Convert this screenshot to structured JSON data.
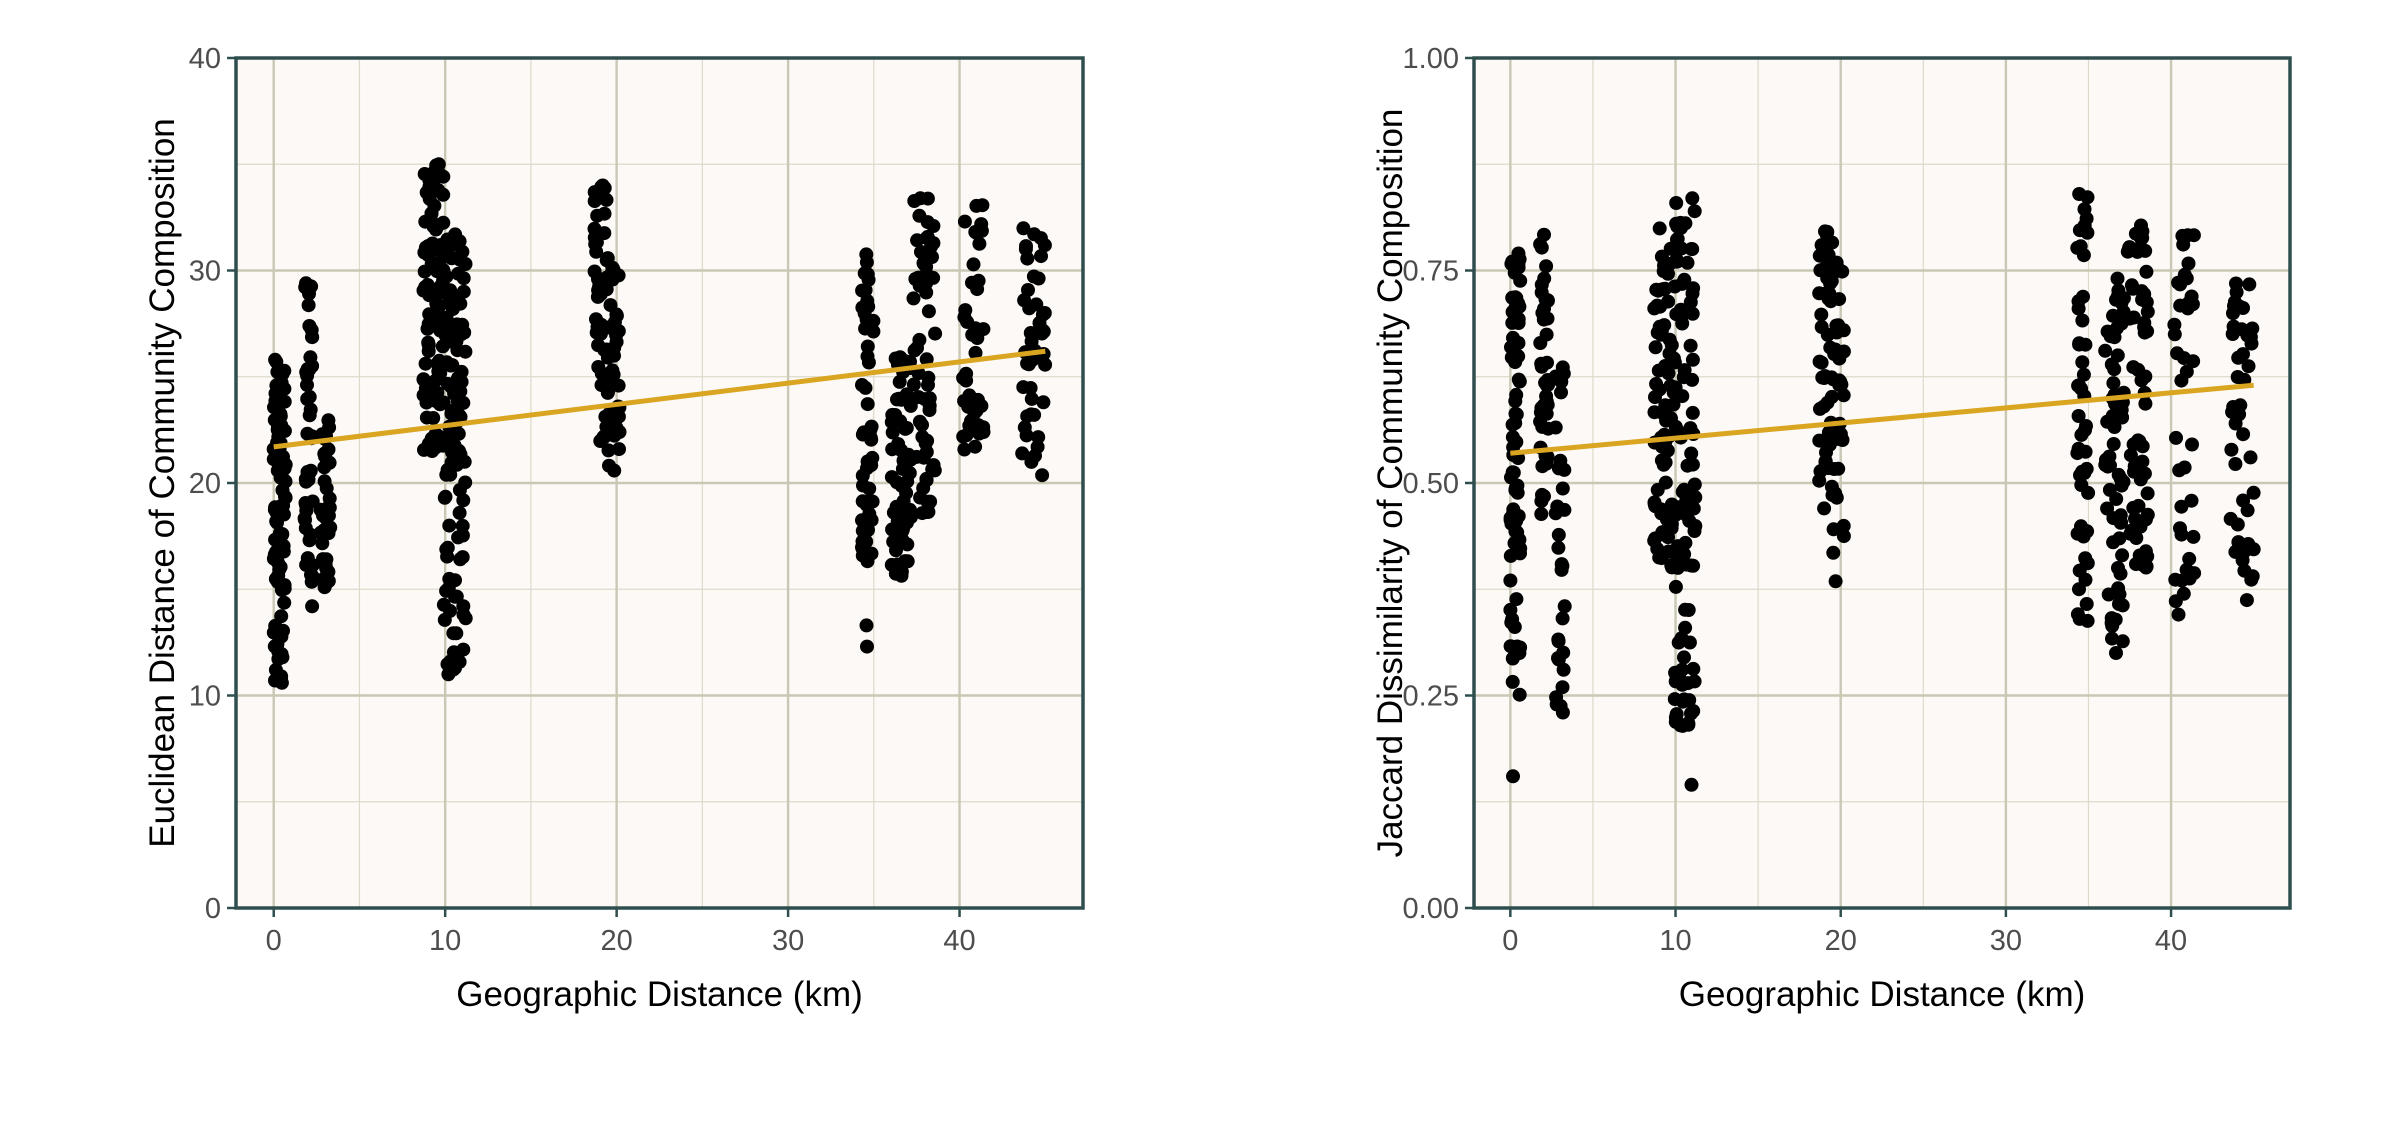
{
  "chart_data": [
    {
      "type": "scatter",
      "xlabel": "Geographic Distance (km)",
      "ylabel": "Euclidean Distance of Community Composition",
      "xlim": [
        -2.2,
        47.2
      ],
      "ylim": [
        0,
        40
      ],
      "x_ticks": [
        0,
        10,
        20,
        30,
        40
      ],
      "x_tick_labels": [
        "0",
        "10",
        "20",
        "30",
        "40"
      ],
      "y_ticks": [
        0,
        10,
        20,
        30,
        40
      ],
      "y_tick_labels": [
        "0",
        "10",
        "20",
        "30",
        "40"
      ],
      "grid": true,
      "point_color": "#000000",
      "trend_color": "#daa520",
      "trend_line": {
        "x": [
          0,
          45
        ],
        "y": [
          21.7,
          26.2
        ]
      },
      "clusters": [
        {
          "x": [
            0.0,
            0.7
          ],
          "y_range": [
            10.6,
            25.8
          ],
          "n": 90,
          "extra_y": [
            10.6,
            11.8,
            25.8
          ]
        },
        {
          "x": [
            1.8,
            2.3
          ],
          "y_range": [
            14.2,
            29.4
          ],
          "n": 45,
          "extra_y": [
            29.4,
            14.2
          ]
        },
        {
          "x": [
            2.7,
            3.3
          ],
          "y_range": [
            14.6,
            23.6
          ],
          "n": 35
        },
        {
          "x": [
            8.7,
            9.9
          ],
          "y_range": [
            21.5,
            35.0
          ],
          "n": 90,
          "extra_y": [
            35.0,
            34.6
          ]
        },
        {
          "x": [
            9.9,
            11.2
          ],
          "y_range": [
            11.0,
            31.7
          ],
          "n": 110,
          "extra_y": [
            11.0,
            11.6,
            31.7
          ]
        },
        {
          "x": [
            18.7,
            19.5
          ],
          "y_range": [
            21.9,
            34.0
          ],
          "n": 50,
          "extra_y": [
            34.0
          ]
        },
        {
          "x": [
            19.5,
            20.2
          ],
          "y_range": [
            20.4,
            30.4
          ],
          "n": 35
        },
        {
          "x": [
            34.3,
            35.0
          ],
          "y_range": [
            16.3,
            31.0
          ],
          "n": 55,
          "extra_y": [
            12.3,
            13.3
          ]
        },
        {
          "x": [
            36.0,
            37.2
          ],
          "y_range": [
            15.5,
            26.0
          ],
          "n": 70
        },
        {
          "x": [
            37.3,
            38.6
          ],
          "y_range": [
            18.5,
            33.4
          ],
          "n": 65,
          "extra_y": [
            33.4
          ]
        },
        {
          "x": [
            40.2,
            41.4
          ],
          "y_range": [
            21.0,
            33.4
          ],
          "n": 45
        },
        {
          "x": [
            43.6,
            45.0
          ],
          "y_range": [
            20.3,
            32.0
          ],
          "n": 45
        }
      ]
    },
    {
      "type": "scatter",
      "xlabel": "Geographic Distance (km)",
      "ylabel": "Jaccard Dissimilarity of Community Composition",
      "xlim": [
        -2.2,
        47.2
      ],
      "ylim": [
        0,
        1
      ],
      "x_ticks": [
        0,
        10,
        20,
        30,
        40
      ],
      "x_tick_labels": [
        "0",
        "10",
        "20",
        "30",
        "40"
      ],
      "y_ticks": [
        0,
        0.25,
        0.5,
        0.75,
        1.0
      ],
      "y_tick_labels": [
        "0.00",
        "0.25",
        "0.50",
        "0.75",
        "1.00"
      ],
      "grid": true,
      "point_color": "#000000",
      "trend_color": "#daa520",
      "trend_line": {
        "x": [
          0,
          45
        ],
        "y": [
          0.535,
          0.615
        ]
      },
      "clusters": [
        {
          "x": [
            0.0,
            0.6
          ],
          "y_range": [
            0.25,
            0.77
          ],
          "n": 80,
          "extra_y": [
            0.155,
            0.77
          ]
        },
        {
          "x": [
            1.8,
            2.3
          ],
          "y_range": [
            0.45,
            0.8
          ],
          "n": 45
        },
        {
          "x": [
            2.7,
            3.3
          ],
          "y_range": [
            0.23,
            0.65
          ],
          "n": 30,
          "extra_y": [
            0.23
          ]
        },
        {
          "x": [
            8.7,
            9.9
          ],
          "y_range": [
            0.4,
            0.81
          ],
          "n": 80
        },
        {
          "x": [
            9.9,
            11.2
          ],
          "y_range": [
            0.21,
            0.83
          ],
          "n": 100,
          "extra_y": [
            0.145,
            0.215,
            0.835
          ]
        },
        {
          "x": [
            18.7,
            19.5
          ],
          "y_range": [
            0.47,
            0.8
          ],
          "n": 50
        },
        {
          "x": [
            19.5,
            20.2
          ],
          "y_range": [
            0.38,
            0.77
          ],
          "n": 35
        },
        {
          "x": [
            34.3,
            35.0
          ],
          "y_range": [
            0.33,
            0.84
          ],
          "n": 50,
          "extra_y": [
            0.84
          ]
        },
        {
          "x": [
            36.0,
            37.2
          ],
          "y_range": [
            0.3,
            0.75
          ],
          "n": 65,
          "extra_y": [
            0.3
          ]
        },
        {
          "x": [
            37.3,
            38.6
          ],
          "y_range": [
            0.4,
            0.81
          ],
          "n": 60
        },
        {
          "x": [
            40.2,
            41.4
          ],
          "y_range": [
            0.33,
            0.8
          ],
          "n": 40
        },
        {
          "x": [
            43.6,
            45.0
          ],
          "y_range": [
            0.36,
            0.74
          ],
          "n": 45
        }
      ]
    }
  ]
}
